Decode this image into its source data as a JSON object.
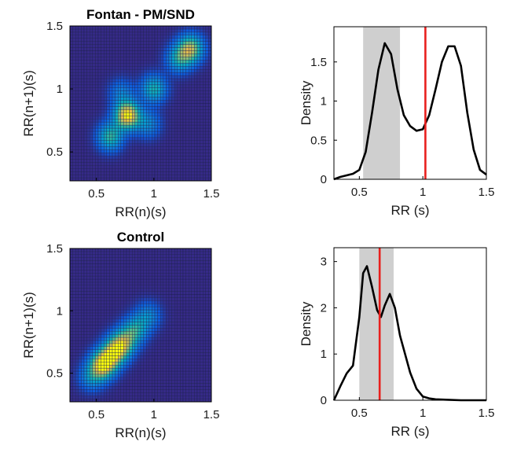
{
  "chart_data": [
    {
      "type": "heatmap",
      "title": "Fontan - PM/SND",
      "xlabel": "RR(n)(s)",
      "ylabel": "RR(n+1)(s)",
      "xlim": [
        0.27,
        1.5
      ],
      "ylim": [
        0.27,
        1.5
      ],
      "xticks": [
        "0.5",
        "1",
        "1.5"
      ],
      "yticks": [
        "0.5",
        "1",
        "1.5"
      ],
      "colormap": "parula",
      "grid_cells": 50,
      "hotspots": [
        {
          "x": 0.77,
          "y": 0.79,
          "intensity": 1.0
        },
        {
          "x": 1.32,
          "y": 1.32,
          "intensity": 0.75
        },
        {
          "x": 0.62,
          "y": 0.62,
          "intensity": 0.55
        },
        {
          "x": 1.0,
          "y": 1.0,
          "intensity": 0.5
        },
        {
          "x": 1.22,
          "y": 1.24,
          "intensity": 0.45
        },
        {
          "x": 0.95,
          "y": 0.72,
          "intensity": 0.3
        },
        {
          "x": 0.72,
          "y": 0.97,
          "intensity": 0.25
        }
      ]
    },
    {
      "type": "line",
      "title": "",
      "xlabel": "RR (s)",
      "ylabel": "Density",
      "xlim": [
        0.3,
        1.5
      ],
      "ylim": [
        0,
        1.95
      ],
      "xticks": [
        "0.5",
        "1",
        "1.5"
      ],
      "yticks": [
        "0",
        "0.5",
        "1",
        "1.5"
      ],
      "shaded_band": [
        0.53,
        0.82
      ],
      "vertical_line": 1.02,
      "x": [
        0.3,
        0.35,
        0.4,
        0.45,
        0.5,
        0.55,
        0.6,
        0.65,
        0.7,
        0.75,
        0.8,
        0.85,
        0.9,
        0.95,
        1.0,
        1.05,
        1.1,
        1.15,
        1.2,
        1.25,
        1.3,
        1.35,
        1.4,
        1.45,
        1.5
      ],
      "y": [
        0.0,
        0.03,
        0.05,
        0.07,
        0.12,
        0.35,
        0.85,
        1.4,
        1.74,
        1.6,
        1.15,
        0.82,
        0.68,
        0.62,
        0.64,
        0.82,
        1.15,
        1.5,
        1.7,
        1.7,
        1.45,
        0.85,
        0.38,
        0.12,
        0.06
      ]
    },
    {
      "type": "heatmap",
      "title": "Control",
      "xlabel": "RR(n)(s)",
      "ylabel": "RR(n+1)(s)",
      "xlim": [
        0.27,
        1.5
      ],
      "ylim": [
        0.27,
        1.5
      ],
      "xticks": [
        "0.5",
        "1",
        "1.5"
      ],
      "yticks": [
        "0.5",
        "1",
        "1.5"
      ],
      "colormap": "parula",
      "grid_cells": 50,
      "hotspots": [
        {
          "x": 0.56,
          "y": 0.57,
          "intensity": 1.0
        },
        {
          "x": 0.66,
          "y": 0.67,
          "intensity": 0.8
        },
        {
          "x": 0.74,
          "y": 0.75,
          "intensity": 0.6
        },
        {
          "x": 0.84,
          "y": 0.85,
          "intensity": 0.45
        },
        {
          "x": 0.46,
          "y": 0.47,
          "intensity": 0.35
        },
        {
          "x": 0.95,
          "y": 0.96,
          "intensity": 0.3
        }
      ]
    },
    {
      "type": "line",
      "title": "",
      "xlabel": "RR (s)",
      "ylabel": "Density",
      "xlim": [
        0.3,
        1.5
      ],
      "ylim": [
        0,
        3.3
      ],
      "xticks": [
        "0.5",
        "1",
        "1.5"
      ],
      "yticks": [
        "0",
        "1",
        "2",
        "3"
      ],
      "shaded_band": [
        0.5,
        0.77
      ],
      "vertical_line": 0.66,
      "x": [
        0.3,
        0.35,
        0.4,
        0.45,
        0.5,
        0.53,
        0.56,
        0.6,
        0.64,
        0.67,
        0.7,
        0.74,
        0.78,
        0.82,
        0.86,
        0.9,
        0.95,
        1.0,
        1.05,
        1.1,
        1.2,
        1.3,
        1.4,
        1.5
      ],
      "y": [
        0.0,
        0.3,
        0.58,
        0.75,
        1.8,
        2.75,
        2.9,
        2.45,
        1.95,
        1.8,
        2.05,
        2.3,
        2.0,
        1.4,
        1.0,
        0.6,
        0.25,
        0.08,
        0.04,
        0.02,
        0.01,
        0.0,
        0.0,
        0.0
      ]
    }
  ]
}
